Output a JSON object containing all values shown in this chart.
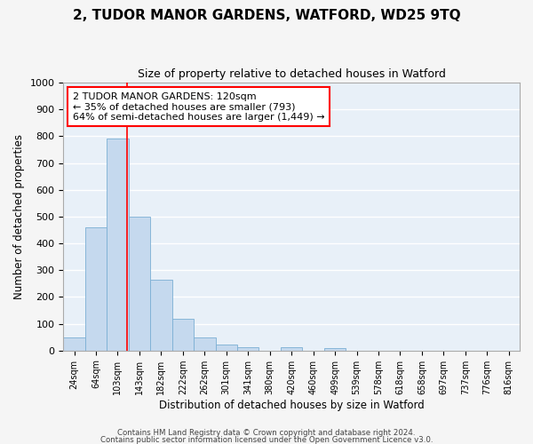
{
  "title": "2, TUDOR MANOR GARDENS, WATFORD, WD25 9TQ",
  "subtitle": "Size of property relative to detached houses in Watford",
  "xlabel": "Distribution of detached houses by size in Watford",
  "ylabel": "Number of detached properties",
  "bar_color": "#c5d9ee",
  "bar_edge_color": "#7bafd4",
  "bg_color": "#e8f0f8",
  "grid_color": "#ffffff",
  "fig_bg_color": "#f5f5f5",
  "categories": [
    "24sqm",
    "64sqm",
    "103sqm",
    "143sqm",
    "182sqm",
    "222sqm",
    "262sqm",
    "301sqm",
    "341sqm",
    "380sqm",
    "420sqm",
    "460sqm",
    "499sqm",
    "539sqm",
    "578sqm",
    "618sqm",
    "658sqm",
    "697sqm",
    "737sqm",
    "776sqm",
    "816sqm"
  ],
  "values": [
    50,
    460,
    793,
    500,
    265,
    120,
    50,
    22,
    12,
    0,
    12,
    0,
    10,
    0,
    0,
    0,
    0,
    0,
    0,
    0,
    0
  ],
  "red_line_x": 2.45,
  "annotation_line1": "2 TUDOR MANOR GARDENS: 120sqm",
  "annotation_line2": "← 35% of detached houses are smaller (793)",
  "annotation_line3": "64% of semi-detached houses are larger (1,449) →",
  "ylim": [
    0,
    1000
  ],
  "yticks": [
    0,
    100,
    200,
    300,
    400,
    500,
    600,
    700,
    800,
    900,
    1000
  ],
  "footer1": "Contains HM Land Registry data © Crown copyright and database right 2024.",
  "footer2": "Contains public sector information licensed under the Open Government Licence v3.0."
}
